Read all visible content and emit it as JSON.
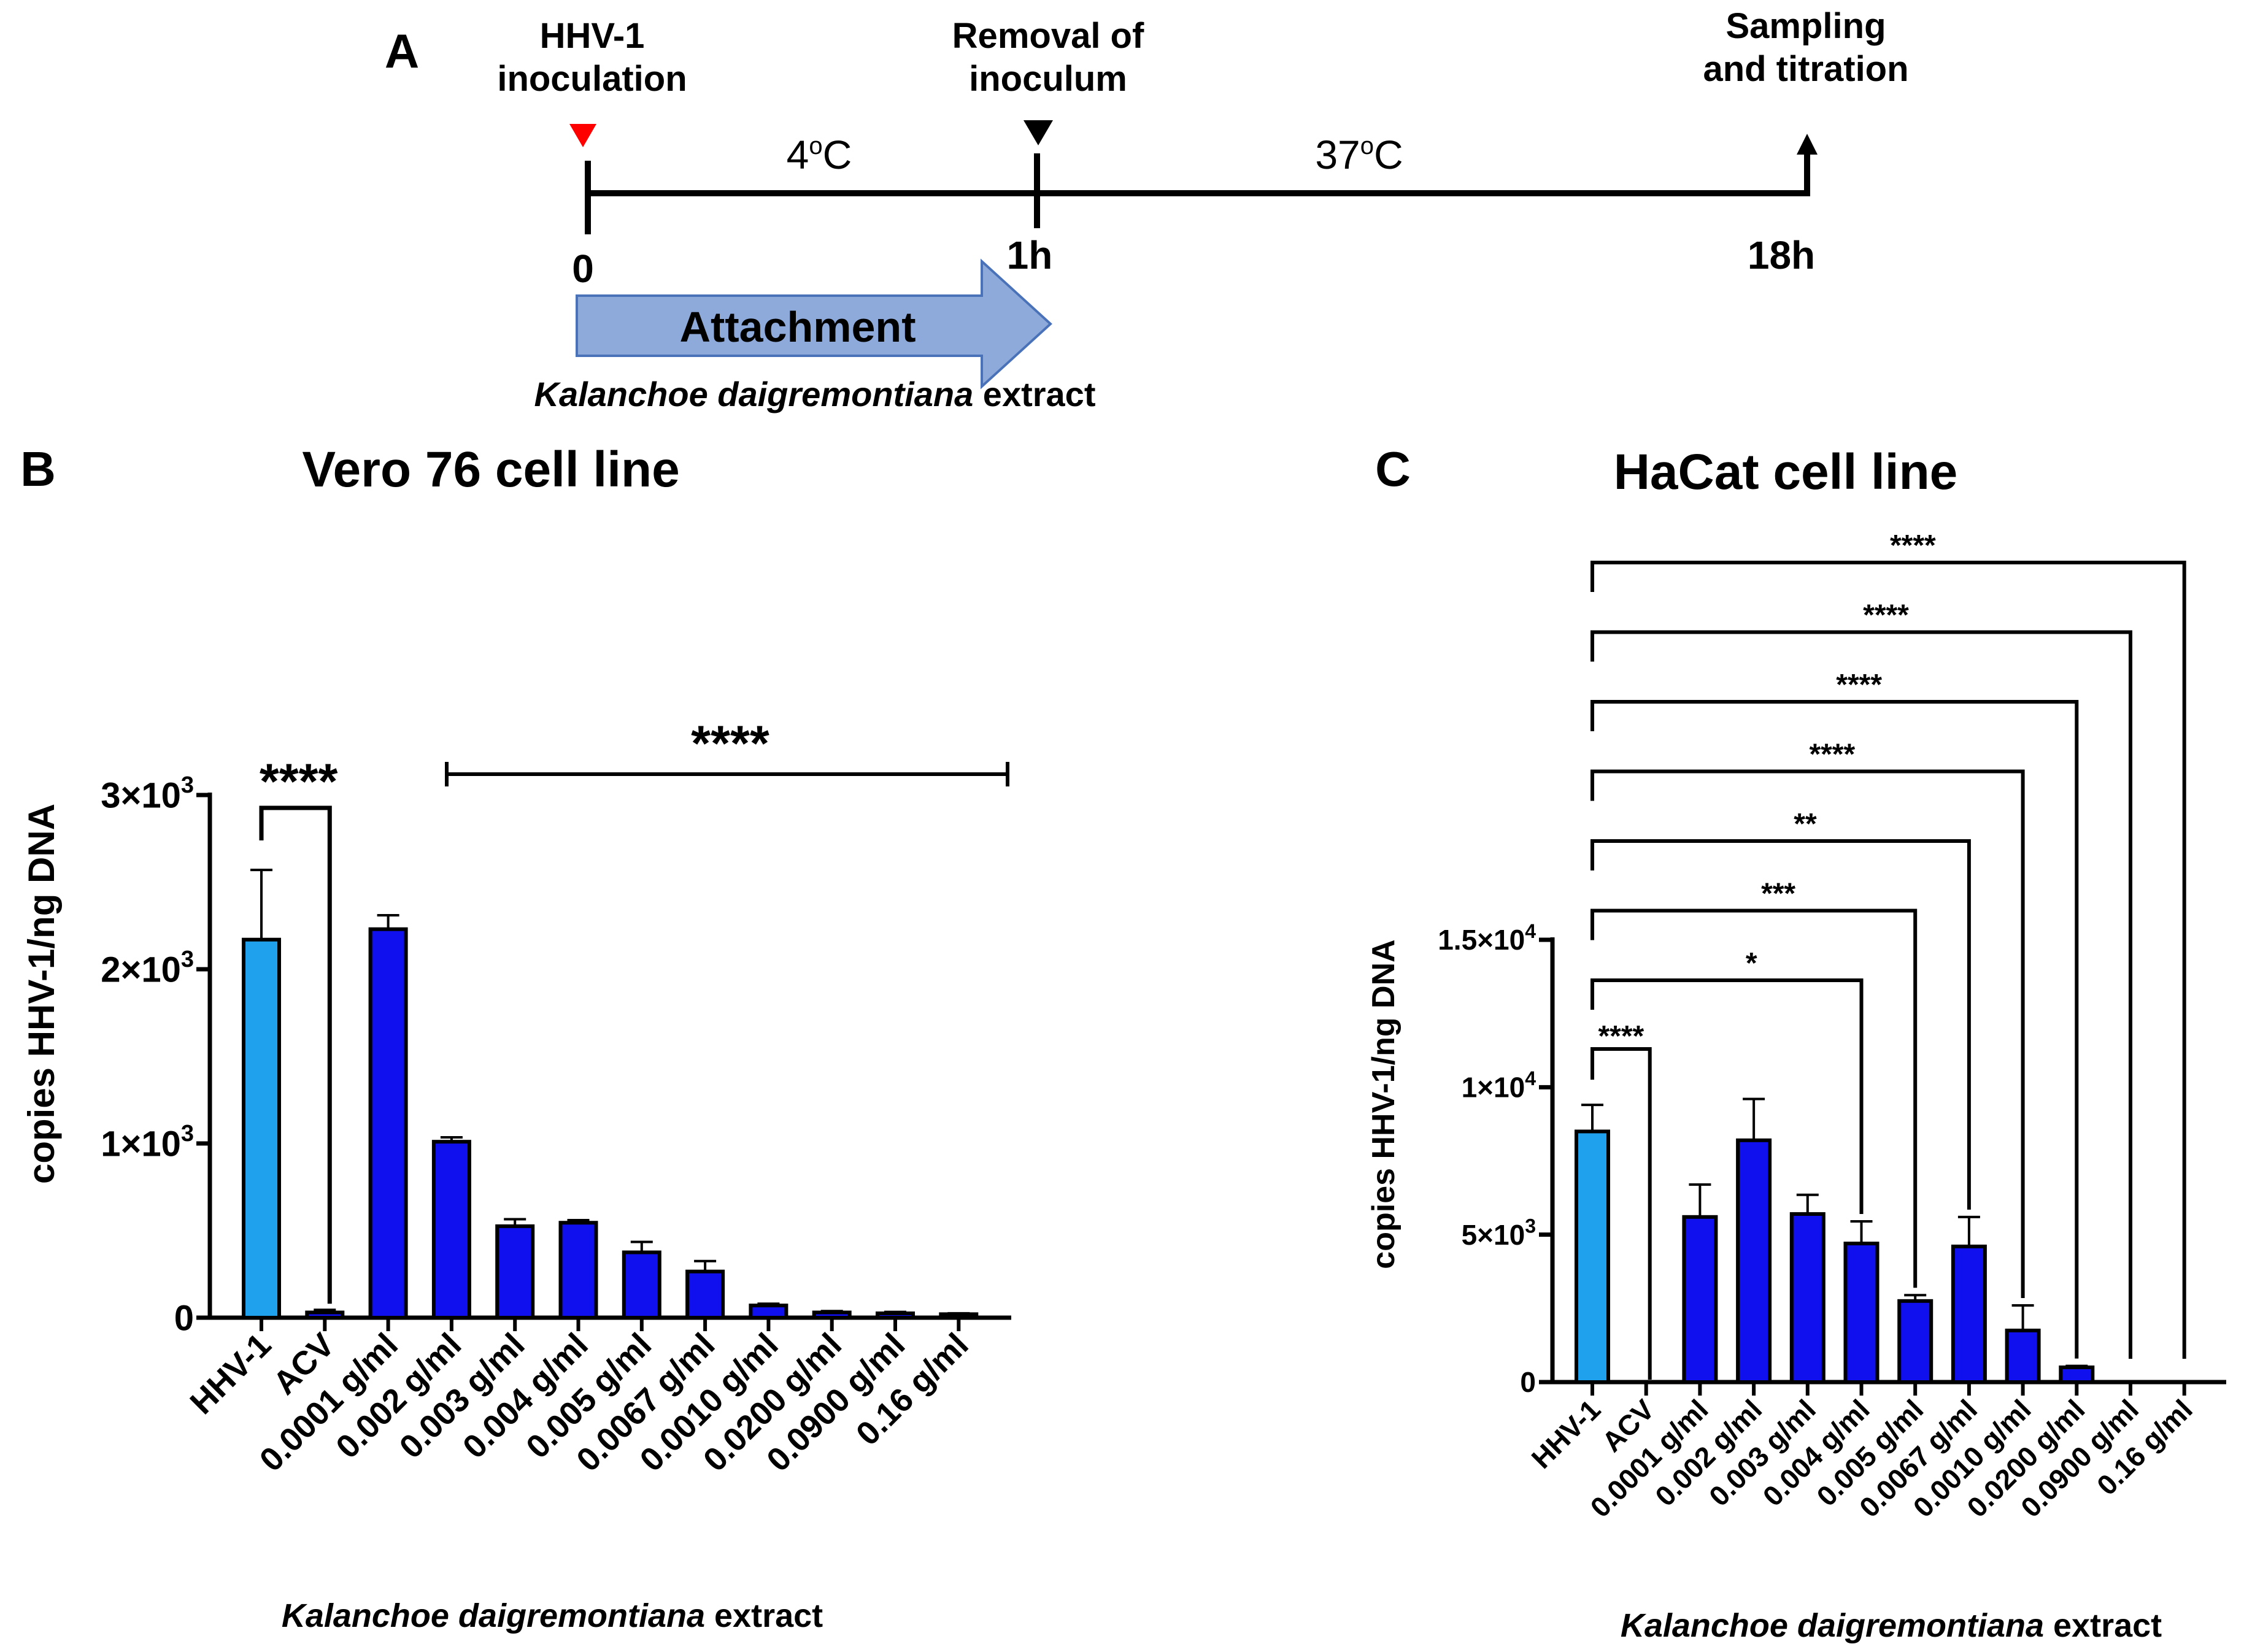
{
  "panel_a": {
    "label": "A",
    "inoculation_line1": "HHV-1",
    "inoculation_line2": "inoculation",
    "removal_line1": "Removal of",
    "removal_line2": "inoculum",
    "sampling_line1": "Sampling",
    "sampling_line2": "and titration",
    "temp_cold": "4",
    "temp_cold_sup": "o",
    "temp_cold_unit": "C",
    "temp_warm": "37",
    "temp_warm_sup": "o",
    "temp_warm_unit": "C",
    "tick_0": "0",
    "tick_1h": "1h",
    "tick_18h": "18h",
    "arrow_label": "Attachment",
    "extract_italic": "Kalanchoe daigremontiana",
    "extract_suffix": " extract",
    "colors": {
      "inoculation_marker": "#ff0000",
      "removal_marker": "#000000",
      "arrow_fill": "#8eaadb",
      "arrow_stroke": "#4a72b8"
    }
  },
  "chart_data": [
    {
      "type": "bar",
      "panel_label": "B",
      "title": "Vero 76 cell line",
      "ylabel": "copies HHV-1/ng DNA",
      "xlabel_italic": "Kalanchoe daigremontiana",
      "xlabel_suffix": " extract",
      "categories": [
        "HHV-1",
        "ACV",
        "0.0001 g/ml",
        "0.002 g/ml",
        "0.003 g/ml",
        "0.004 g/ml",
        "0.005 g/ml",
        "0.0067 g/ml",
        "0.0010 g/ml",
        "0.0200 g/ml",
        "0.0900 g/ml",
        "0.16 g/ml"
      ],
      "values": [
        2170,
        30,
        2230,
        1010,
        525,
        545,
        375,
        265,
        70,
        30,
        25,
        20
      ],
      "errors": [
        400,
        15,
        80,
        25,
        40,
        15,
        60,
        60,
        10,
        8,
        8,
        5
      ],
      "colors": [
        "#1fa1ee",
        "#1010ee",
        "#1010ee",
        "#1010ee",
        "#1010ee",
        "#1010ee",
        "#1010ee",
        "#1010ee",
        "#1010ee",
        "#1010ee",
        "#1010ee",
        "#1010ee"
      ],
      "ylim": [
        0,
        3000
      ],
      "yticks": [
        {
          "value": 0,
          "base": "0",
          "exp": ""
        },
        {
          "value": 1000,
          "base": "1×10",
          "exp": "3"
        },
        {
          "value": 2000,
          "base": "2×10",
          "exp": "3"
        },
        {
          "value": 3000,
          "base": "3×10",
          "exp": "3"
        }
      ],
      "significance": [
        {
          "from": 0,
          "to": 1,
          "label": "****",
          "kind": "pair"
        },
        {
          "from": 3,
          "to": 11,
          "label": "****",
          "kind": "range"
        }
      ]
    },
    {
      "type": "bar",
      "panel_label": "C",
      "title": "HaCat cell line",
      "ylabel": "copies HHV-1/ng DNA",
      "xlabel_italic": "Kalanchoe daigremontiana",
      "xlabel_suffix": " extract",
      "categories": [
        "HHV-1",
        "ACV",
        "0.0001 g/ml",
        "0.002 g/ml",
        "0.003 g/ml",
        "0.004 g/ml",
        "0.005 g/ml",
        "0.0067 g/ml",
        "0.0010 g/ml",
        "0.0200 g/ml",
        "0.0900 g/ml",
        "0.16 g/ml"
      ],
      "values": [
        8500,
        0,
        5600,
        8200,
        5700,
        4700,
        2750,
        4600,
        1750,
        500,
        0,
        0
      ],
      "errors": [
        900,
        0,
        1100,
        1400,
        650,
        750,
        200,
        1000,
        850,
        50,
        0,
        0
      ],
      "colors": [
        "#1fa1ee",
        "#1010ee",
        "#1010ee",
        "#1010ee",
        "#1010ee",
        "#1010ee",
        "#1010ee",
        "#1010ee",
        "#1010ee",
        "#1010ee",
        "#1010ee",
        "#1010ee"
      ],
      "ylim": [
        0,
        15000
      ],
      "yticks": [
        {
          "value": 0,
          "base": "0",
          "exp": ""
        },
        {
          "value": 5000,
          "base": "5×10",
          "exp": "3"
        },
        {
          "value": 10000,
          "base": "1×10",
          "exp": "4"
        },
        {
          "value": 15000,
          "base": "1.5×10",
          "exp": "4"
        }
      ],
      "significance": [
        {
          "from": 0,
          "to": 1,
          "label": "****",
          "level": 0
        },
        {
          "from": 0,
          "to": 5,
          "label": "*",
          "level": 1
        },
        {
          "from": 0,
          "to": 6,
          "label": "***",
          "level": 2
        },
        {
          "from": 0,
          "to": 7,
          "label": "**",
          "level": 3
        },
        {
          "from": 0,
          "to": 8,
          "label": "****",
          "level": 4
        },
        {
          "from": 0,
          "to": 9,
          "label": "****",
          "level": 5
        },
        {
          "from": 0,
          "to": 10,
          "label": "****",
          "level": 6
        },
        {
          "from": 0,
          "to": 11,
          "label": "****",
          "level": 7
        }
      ]
    }
  ]
}
